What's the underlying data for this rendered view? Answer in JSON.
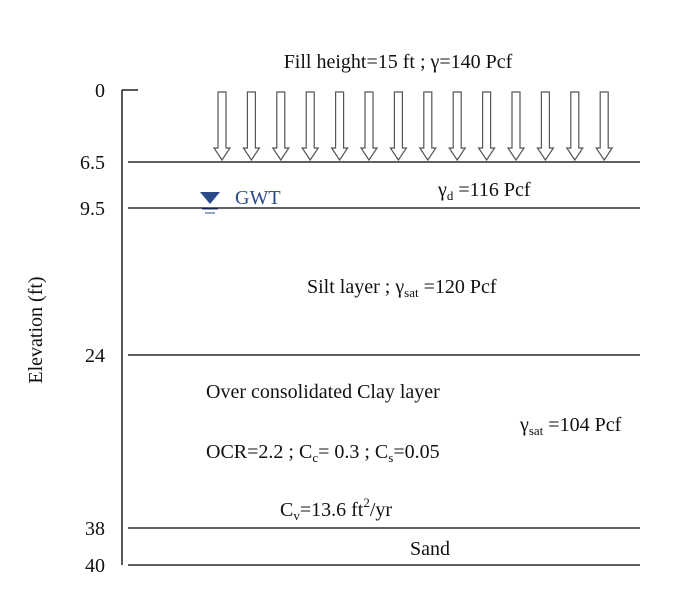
{
  "fill_label": [
    {
      "text": "Fill height=15 ft  ; γ=140 Pcf"
    }
  ],
  "axis_label": "Elevation (ft)",
  "elevations": [
    "0",
    "6.5",
    "9.5",
    "24",
    "38",
    "40"
  ],
  "gwt_label": "GWT",
  "dry_unit_weight": [
    {
      "text": "γ"
    },
    {
      "sub": "d"
    },
    {
      "text": " =116 Pcf"
    }
  ],
  "silt_label": [
    {
      "text": "Silt layer ; γ"
    },
    {
      "sub": "sat"
    },
    {
      "text": " =120 Pcf"
    }
  ],
  "clay_label": [
    {
      "text": "Over consolidated Clay layer"
    }
  ],
  "clay_unit_weight": [
    {
      "text": "γ"
    },
    {
      "sub": "sat"
    },
    {
      "text": " =104 Pcf"
    }
  ],
  "clay_params": [
    {
      "text": "OCR=2.2 ; C"
    },
    {
      "sub": "c"
    },
    {
      "text": "= 0.3 ; C"
    },
    {
      "sub": "s"
    },
    {
      "text": "=0.05"
    }
  ],
  "consolidation": [
    {
      "text": "C"
    },
    {
      "sub": "v"
    },
    {
      "text": "=13.6 ft"
    },
    {
      "sup": "2"
    },
    {
      "text": "/yr"
    }
  ],
  "sand_label": [
    {
      "text": "Sand"
    }
  ]
}
